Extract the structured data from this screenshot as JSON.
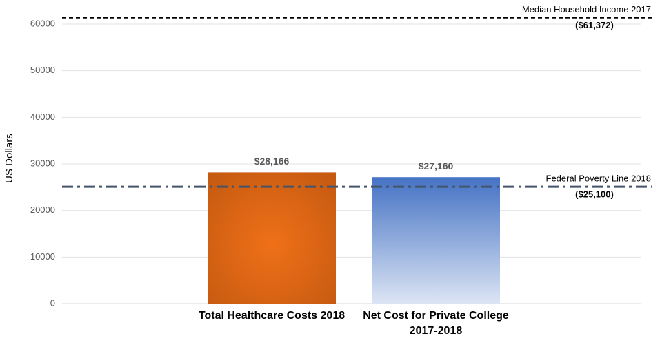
{
  "chart_data": {
    "type": "bar",
    "y_label": "US Dollars",
    "categories": [
      "Total Healthcare Costs 2018",
      "Net Cost for Private College 2017-2018"
    ],
    "values": [
      28166,
      27160
    ],
    "value_labels": [
      "$28,166",
      "$27,160"
    ],
    "colors": [
      "#c55a11",
      "#4472c4"
    ],
    "ylim": [
      0,
      62000
    ],
    "yticks": [
      0,
      10000,
      20000,
      30000,
      40000,
      50000,
      60000
    ],
    "grid": true,
    "reference_lines": [
      {
        "label": "Median Household Income 2017",
        "value": 61372,
        "value_label": "($61,372)",
        "style": "dashed",
        "color": "#000000"
      },
      {
        "label": "Federal Poverty Line 2018",
        "value": 25100,
        "value_label": "($25,100)",
        "style": "dash-dot",
        "color": "#44546a"
      }
    ]
  }
}
